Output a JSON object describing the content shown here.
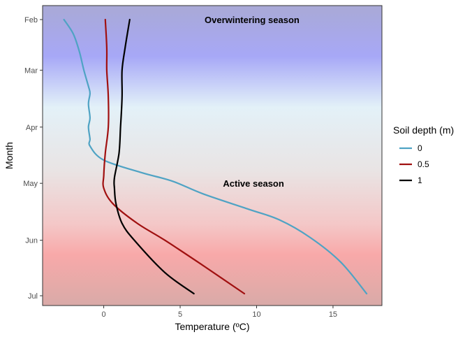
{
  "chart_data": {
    "type": "line",
    "title": "",
    "xlabel": "Temperature (ºC)",
    "ylabel": "Month",
    "xlim": [
      -4,
      18.2
    ],
    "x_ticks": [
      0,
      5,
      10,
      15
    ],
    "x_tick_labels": [
      "0",
      "5",
      "10",
      "15"
    ],
    "ylim": [
      0,
      393
    ],
    "y_ticks": [
      0,
      72,
      153,
      233,
      314,
      393
    ],
    "y_tick_labels": [
      "Feb",
      "Mar",
      "Apr",
      "May",
      "Jun",
      "Jul"
    ],
    "grid": false,
    "legend": {
      "title": "Soil depth (m)",
      "position": "right"
    },
    "annotations": [
      {
        "text": "Overwintering season",
        "x": 9.7,
        "y": 0
      },
      {
        "text": "Active season",
        "x": 9.8,
        "y": 233
      }
    ],
    "series": [
      {
        "name": "0",
        "color": "#4fa3c4",
        "points": [
          [
            -2.6,
            0
          ],
          [
            -2.0,
            20
          ],
          [
            -1.6,
            45
          ],
          [
            -1.3,
            72
          ],
          [
            -1.0,
            95
          ],
          [
            -0.9,
            105
          ],
          [
            -1.0,
            120
          ],
          [
            -0.9,
            140
          ],
          [
            -1.0,
            153
          ],
          [
            -0.9,
            170
          ],
          [
            -0.9,
            180
          ],
          [
            0.0,
            200
          ],
          [
            2.5,
            218
          ],
          [
            4.5,
            230
          ],
          [
            6.5,
            248
          ],
          [
            9.5,
            270
          ],
          [
            11.5,
            285
          ],
          [
            13.5,
            310
          ],
          [
            15.5,
            345
          ],
          [
            17.2,
            390
          ]
        ]
      },
      {
        "name": "0.5",
        "color": "#a01010",
        "points": [
          [
            0.1,
            0
          ],
          [
            0.2,
            40
          ],
          [
            0.2,
            72
          ],
          [
            0.3,
            110
          ],
          [
            0.3,
            153
          ],
          [
            0.1,
            190
          ],
          [
            0.0,
            222
          ],
          [
            0.0,
            240
          ],
          [
            0.6,
            262
          ],
          [
            2.2,
            290
          ],
          [
            4.0,
            314
          ],
          [
            6.5,
            350
          ],
          [
            9.2,
            390
          ]
        ]
      },
      {
        "name": "1",
        "color": "#000000",
        "points": [
          [
            1.7,
            0
          ],
          [
            1.4,
            40
          ],
          [
            1.2,
            72
          ],
          [
            1.2,
            110
          ],
          [
            1.1,
            153
          ],
          [
            1.0,
            190
          ],
          [
            0.7,
            225
          ],
          [
            0.7,
            240
          ],
          [
            0.8,
            262
          ],
          [
            1.2,
            290
          ],
          [
            2.0,
            314
          ],
          [
            4.0,
            360
          ],
          [
            5.9,
            390
          ]
        ]
      }
    ]
  }
}
